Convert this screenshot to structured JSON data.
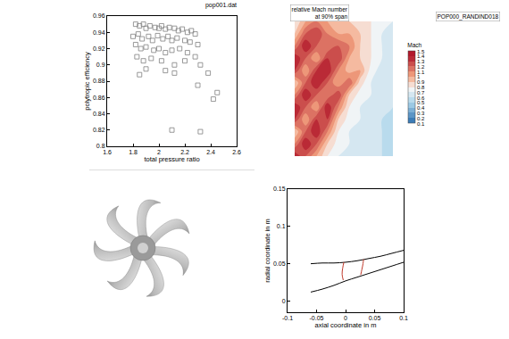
{
  "chart_data": [
    {
      "type": "scatter",
      "title": "pop001.dat",
      "xlabel": "total pressure ratio",
      "ylabel": "polytropic efficiency",
      "marker": "square-open",
      "color": "#808080",
      "grid": false,
      "xlim": [
        1.6,
        2.6
      ],
      "xticks": [
        1.6,
        1.8,
        2,
        2.2,
        2.4,
        2.6
      ],
      "ylim": [
        0.8,
        0.96
      ],
      "yticks": [
        0.8,
        0.82,
        0.84,
        0.86,
        0.88,
        0.9,
        0.92,
        0.94,
        0.96
      ],
      "x": [
        1.82,
        1.85,
        1.88,
        1.9,
        1.93,
        1.97,
        2.0,
        2.02,
        2.05,
        2.08,
        2.12,
        2.15,
        2.18,
        2.22,
        2.25,
        2.28,
        1.8,
        1.84,
        1.87,
        1.92,
        1.95,
        1.99,
        2.03,
        2.07,
        2.1,
        2.14,
        2.2,
        2.24,
        2.3,
        1.82,
        1.86,
        1.9,
        1.96,
        2.0,
        2.05,
        2.1,
        2.16,
        2.22,
        2.28,
        1.83,
        1.88,
        1.94,
        2.02,
        2.12,
        2.2,
        2.32,
        1.9,
        2.05,
        2.38,
        1.85,
        2.45,
        2.42,
        2.3,
        2.12,
        2.1,
        2.32
      ],
      "y": [
        0.95,
        0.948,
        0.95,
        0.945,
        0.948,
        0.946,
        0.945,
        0.948,
        0.944,
        0.946,
        0.945,
        0.942,
        0.944,
        0.94,
        0.942,
        0.938,
        0.935,
        0.938,
        0.932,
        0.935,
        0.93,
        0.936,
        0.932,
        0.935,
        0.93,
        0.933,
        0.93,
        0.928,
        0.925,
        0.925,
        0.92,
        0.922,
        0.918,
        0.92,
        0.915,
        0.918,
        0.92,
        0.915,
        0.91,
        0.91,
        0.905,
        0.908,
        0.905,
        0.9,
        0.905,
        0.9,
        0.895,
        0.893,
        0.89,
        0.888,
        0.866,
        0.858,
        0.875,
        0.89,
        0.82,
        0.818
      ]
    },
    {
      "type": "contour",
      "title": "relative Mach number\nat 90% span",
      "subtitle": "POP000_RANDIND018",
      "tick_labels": false,
      "colorbar": {
        "title": "Mach",
        "range": [
          0.1,
          1.5
        ],
        "ticks": [
          0.1,
          0.2,
          0.3,
          0.4,
          0.5,
          0.6,
          0.7,
          0.8,
          0.9,
          1,
          1.1,
          1.2,
          1.3,
          1.4,
          1.5
        ]
      },
      "z": [
        [
          1.4,
          1.2,
          1.0,
          0.8,
          0.7,
          0.7,
          0.65,
          0.65,
          0.6,
          0.6
        ],
        [
          1.1,
          1.4,
          1.2,
          0.9,
          0.75,
          0.7,
          0.65,
          0.65,
          0.6,
          0.6
        ],
        [
          0.9,
          1.2,
          1.4,
          1.1,
          0.8,
          0.7,
          0.65,
          0.65,
          0.6,
          0.6
        ],
        [
          1.3,
          1.0,
          1.3,
          1.3,
          0.9,
          0.75,
          0.7,
          0.65,
          0.6,
          0.6
        ],
        [
          1.4,
          1.2,
          1.0,
          1.4,
          1.1,
          0.8,
          0.7,
          0.65,
          0.65,
          0.6
        ],
        [
          1.1,
          1.4,
          1.2,
          1.1,
          1.3,
          0.9,
          0.75,
          0.7,
          0.65,
          0.6
        ],
        [
          0.9,
          1.2,
          1.4,
          1.2,
          1.0,
          1.2,
          0.85,
          0.7,
          0.65,
          0.6
        ],
        [
          1.3,
          1.0,
          1.3,
          1.4,
          1.1,
          0.95,
          1.0,
          0.75,
          0.65,
          0.6
        ],
        [
          1.4,
          1.2,
          1.0,
          1.3,
          1.3,
          1.0,
          0.9,
          0.8,
          0.7,
          0.65
        ],
        [
          1.1,
          1.4,
          1.2,
          1.1,
          1.2,
          1.1,
          0.9,
          0.8,
          0.7,
          0.65
        ],
        [
          0.9,
          1.2,
          1.3,
          1.1,
          1.0,
          1.0,
          0.9,
          0.8,
          0.7,
          0.7
        ],
        [
          0.8,
          1.0,
          1.1,
          1.0,
          0.95,
          0.9,
          0.85,
          0.8,
          0.75,
          0.7
        ]
      ]
    },
    {
      "type": "line",
      "xlabel": "axial coordinate in m",
      "ylabel": "radial coordinate in m",
      "grid": false,
      "xlim": [
        -0.1,
        0.1
      ],
      "xticks": [
        -0.1,
        -0.05,
        0,
        0.05,
        0.1
      ],
      "ylim": [
        -0.015,
        0.15
      ],
      "yticks": [
        0,
        0.05,
        0.1,
        0.15
      ],
      "series": [
        {
          "color": "#000000",
          "x": [
            -0.06,
            -0.04,
            -0.02,
            0,
            0.02,
            0.04,
            0.06,
            0.08,
            0.1
          ],
          "y": [
            0.012,
            0.016,
            0.021,
            0.027,
            0.032,
            0.037,
            0.042,
            0.047,
            0.052
          ]
        },
        {
          "color": "#000000",
          "x": [
            -0.06,
            -0.04,
            -0.02,
            0,
            0.02,
            0.04,
            0.06,
            0.08,
            0.1
          ],
          "y": [
            0.05,
            0.051,
            0.051,
            0.052,
            0.054,
            0.057,
            0.06,
            0.064,
            0.068
          ]
        },
        {
          "color": "#c0392b",
          "x": [
            -0.004,
            -0.006,
            -0.005,
            -0.003
          ],
          "y": [
            0.028,
            0.036,
            0.044,
            0.052
          ]
        },
        {
          "color": "#c0392b",
          "x": [
            0.026,
            0.028,
            0.03,
            0.031
          ],
          "y": [
            0.035,
            0.042,
            0.05,
            0.056
          ]
        }
      ]
    }
  ]
}
